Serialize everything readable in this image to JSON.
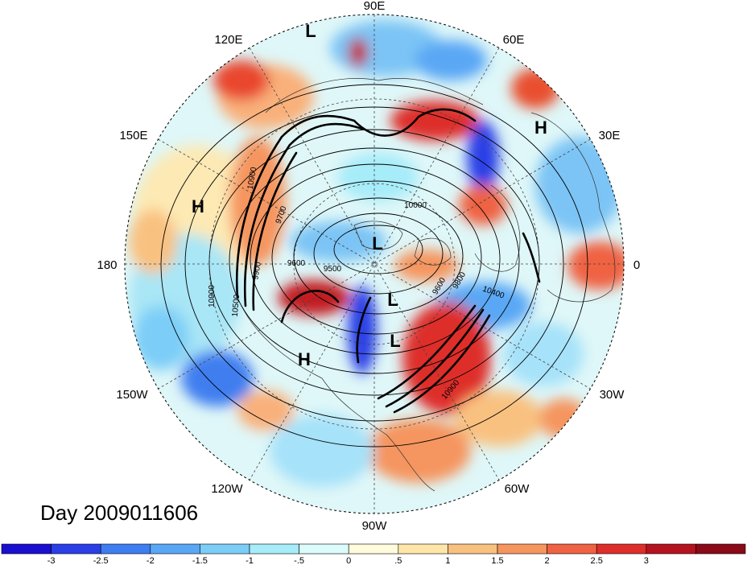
{
  "title": "Day 2009011606",
  "longitude_labels": [
    {
      "id": "lon-90e",
      "text": "90E"
    },
    {
      "id": "lon-60e",
      "text": "60E"
    },
    {
      "id": "lon-30e",
      "text": "30E"
    },
    {
      "id": "lon-0",
      "text": "0"
    },
    {
      "id": "lon-30w",
      "text": "30W"
    },
    {
      "id": "lon-60w",
      "text": "60W"
    },
    {
      "id": "lon-90w",
      "text": "90W"
    },
    {
      "id": "lon-120w",
      "text": "120W"
    },
    {
      "id": "lon-150w",
      "text": "150W"
    },
    {
      "id": "lon-180",
      "text": "180"
    },
    {
      "id": "lon-150e",
      "text": "150E"
    },
    {
      "id": "lon-120e",
      "text": "120E"
    }
  ],
  "pressure_centers": [
    {
      "id": "center-l-siberia",
      "text": "L"
    },
    {
      "id": "center-h-europe",
      "text": "H"
    },
    {
      "id": "center-h-pacific",
      "text": "H"
    },
    {
      "id": "center-l-pole",
      "text": "L"
    },
    {
      "id": "center-l-canada-1",
      "text": "L"
    },
    {
      "id": "center-l-canada-2",
      "text": "L"
    },
    {
      "id": "center-h-alaska",
      "text": "H"
    }
  ],
  "contour_labels": [
    {
      "id": "c-9500",
      "text": "9500"
    },
    {
      "id": "c-9600-a",
      "text": "9600"
    },
    {
      "id": "c-9600-b",
      "text": "9600"
    },
    {
      "id": "c-9700",
      "text": "9700"
    },
    {
      "id": "c-9800",
      "text": "9800"
    },
    {
      "id": "c-9900",
      "text": "9900"
    },
    {
      "id": "c-10000",
      "text": "10000"
    },
    {
      "id": "c-10400",
      "text": "10400"
    },
    {
      "id": "c-10500",
      "text": "10500"
    },
    {
      "id": "c-10900-a",
      "text": "10900"
    },
    {
      "id": "c-10900-b",
      "text": "10900"
    },
    {
      "id": "c-10900-c",
      "text": "10900"
    }
  ],
  "colorbar": {
    "colors": [
      "#1a0fcf",
      "#2b3fe6",
      "#3f7ef0",
      "#5aa7f5",
      "#7ccdf7",
      "#a6ecf9",
      "#dcfbfb",
      "#fffbdc",
      "#fde6a8",
      "#f9c180",
      "#f5955f",
      "#ef6243",
      "#de2e2b",
      "#b5131f",
      "#8a0a18"
    ],
    "ticks": [
      "-3",
      "-2.5",
      "-2",
      "-1.5",
      "-1",
      "-.5",
      "0",
      ".5",
      "1",
      "1.5",
      "2",
      "2.5",
      "3"
    ]
  }
}
